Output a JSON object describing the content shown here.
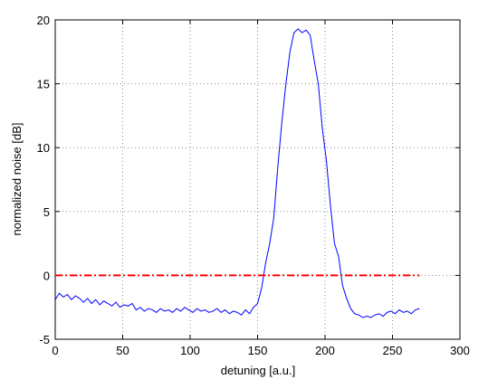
{
  "chart_data": {
    "type": "line",
    "xlabel": "detuning [a.u.]",
    "ylabel": "normalized noise [dB]",
    "xlim": [
      0,
      300
    ],
    "ylim": [
      -5,
      20
    ],
    "xticks": [
      0,
      50,
      100,
      150,
      200,
      250,
      300
    ],
    "yticks": [
      -5,
      0,
      5,
      10,
      15,
      20
    ],
    "grid": true,
    "series": [
      {
        "color": "#0000ff",
        "style": "solid",
        "x": [
          0,
          3,
          6,
          9,
          12,
          15,
          18,
          21,
          24,
          27,
          30,
          33,
          36,
          39,
          42,
          45,
          48,
          51,
          54,
          57,
          60,
          63,
          66,
          69,
          72,
          75,
          78,
          81,
          84,
          87,
          90,
          93,
          96,
          99,
          102,
          105,
          108,
          111,
          114,
          117,
          120,
          123,
          126,
          129,
          132,
          135,
          138,
          141,
          144,
          147,
          150,
          153,
          156,
          159,
          162,
          165,
          168,
          171,
          174,
          177,
          180,
          183,
          186,
          189,
          192,
          195,
          198,
          201,
          204,
          207,
          210,
          213,
          216,
          219,
          222,
          225,
          228,
          231,
          234,
          237,
          240,
          243,
          246,
          249,
          252,
          255,
          258,
          261,
          264,
          267,
          270
        ],
        "values": [
          -1.9,
          -1.4,
          -1.7,
          -1.5,
          -1.9,
          -1.6,
          -1.8,
          -2.1,
          -1.8,
          -2.2,
          -1.9,
          -2.3,
          -2.0,
          -2.2,
          -2.4,
          -2.1,
          -2.5,
          -2.3,
          -2.4,
          -2.2,
          -2.7,
          -2.5,
          -2.8,
          -2.6,
          -2.7,
          -2.9,
          -2.6,
          -2.8,
          -2.7,
          -2.9,
          -2.6,
          -2.8,
          -2.5,
          -2.7,
          -2.9,
          -2.6,
          -2.8,
          -2.7,
          -2.9,
          -2.8,
          -2.6,
          -2.9,
          -2.7,
          -3.0,
          -2.8,
          -2.9,
          -3.1,
          -2.7,
          -3.0,
          -2.5,
          -2.2,
          -1.0,
          1.0,
          2.5,
          4.5,
          8.5,
          12.0,
          15.0,
          17.5,
          19.0,
          19.3,
          19.0,
          19.2,
          18.8,
          16.8,
          15.0,
          11.5,
          9.0,
          5.5,
          2.5,
          1.5,
          -0.8,
          -1.8,
          -2.6,
          -3.0,
          -3.1,
          -3.3,
          -3.2,
          -3.3,
          -3.1,
          -3.0,
          -3.2,
          -2.9,
          -2.8,
          -3.0,
          -2.7,
          -2.9,
          -2.8,
          -3.0,
          -2.7,
          -2.6
        ]
      },
      {
        "color": "#ff0000",
        "style": "dashdot",
        "x": [
          0,
          270
        ],
        "values": [
          0,
          0
        ]
      }
    ]
  }
}
